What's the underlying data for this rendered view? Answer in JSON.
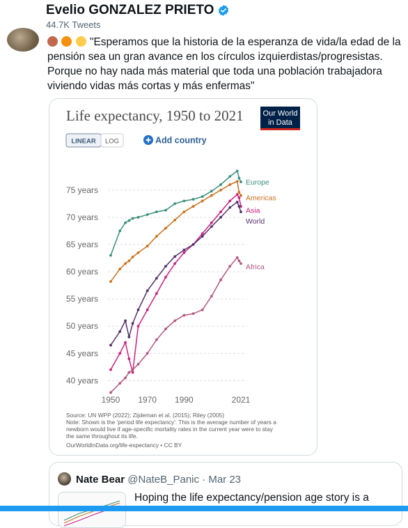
{
  "profile": {
    "name": "Evelio GONZALEZ PRIETO",
    "tweet_count": "44.7K Tweets"
  },
  "tweet": {
    "text": "\"Esperamos que la historia de la esperanza de vida/la edad de la pensión sea un gran avance en los círculos izquierdistas/progresistas. Porque no hay nada más material que toda una población trabajadora viviendo vidas más cortas y más enfermas\"",
    "emoji_colors": [
      "#c1694f",
      "#f4900c",
      "#ffcc4d"
    ]
  },
  "chart": {
    "title": "Life expectancy, 1950 to 2021",
    "logo_line1": "Our World",
    "logo_line2": "in Data",
    "btn_linear": "LINEAR",
    "btn_log": "LOG",
    "add_country": "Add country",
    "source": "Source: UN WPP (2022); Zijdeman et al. (2015); Riley (2005)",
    "note1": "Note: Shown is the 'period life expectancy'. This is the average number of years a",
    "note2": "newborn would live if age-specific mortality rates in the current year were to stay",
    "note3": "the same throughout its life.",
    "url": "OurWorldInData.org/life-expectancy • CC BY"
  },
  "chart_data": {
    "type": "line",
    "title": "Life expectancy, 1950 to 2021",
    "x": [
      1950,
      1955,
      1958,
      1960,
      1962,
      1965,
      1970,
      1975,
      1980,
      1985,
      1990,
      1995,
      2000,
      2005,
      2010,
      2015,
      2019,
      2020,
      2021
    ],
    "xticks": [
      "1950",
      "1970",
      "1990",
      "2021"
    ],
    "yticks": [
      "40 years",
      "45 years",
      "50 years",
      "55 years",
      "60 years",
      "65 years",
      "70 years",
      "75 years"
    ],
    "ylim": [
      38,
      81
    ],
    "xlim": [
      1950,
      2021
    ],
    "series": [
      {
        "name": "Europe",
        "color": "#3a8f7b",
        "values": [
          63.0,
          67.5,
          69.0,
          69.4,
          69.8,
          70.0,
          70.5,
          71.0,
          71.3,
          72.5,
          73.0,
          73.3,
          73.8,
          74.8,
          76.0,
          77.5,
          78.5,
          77.2,
          76.5
        ]
      },
      {
        "name": "Americas",
        "color": "#c7711d",
        "values": [
          58.2,
          60.5,
          61.5,
          62.0,
          62.7,
          63.5,
          64.7,
          66.5,
          68.0,
          69.5,
          71.0,
          72.0,
          73.0,
          74.0,
          75.0,
          76.0,
          76.6,
          74.6,
          74.0
        ]
      },
      {
        "name": "Asia",
        "color": "#c8207f",
        "values": [
          42.0,
          45.0,
          47.0,
          44.0,
          41.5,
          50.0,
          53.0,
          56.0,
          59.0,
          61.5,
          63.5,
          65.0,
          67.0,
          69.0,
          71.0,
          73.0,
          74.2,
          73.6,
          72.0
        ]
      },
      {
        "name": "World",
        "color": "#55306b",
        "values": [
          46.5,
          49.0,
          51.0,
          48.0,
          50.5,
          53.0,
          56.5,
          58.8,
          61.0,
          62.8,
          64.0,
          65.0,
          66.5,
          68.3,
          70.0,
          71.8,
          72.8,
          72.0,
          71.0
        ]
      },
      {
        "name": "Africa",
        "color": "#b25780",
        "values": [
          37.8,
          39.5,
          40.5,
          41.5,
          42.0,
          43.0,
          45.0,
          47.5,
          49.5,
          51.0,
          52.0,
          52.3,
          53.0,
          55.5,
          58.5,
          61.0,
          62.6,
          62.0,
          61.5
        ]
      }
    ]
  },
  "quote": {
    "name": "Nate Bear",
    "handle": "@NateB_Panic",
    "separator": " · ",
    "date": "Mar 23",
    "text": "Hoping the life expectancy/pension age story is a"
  }
}
